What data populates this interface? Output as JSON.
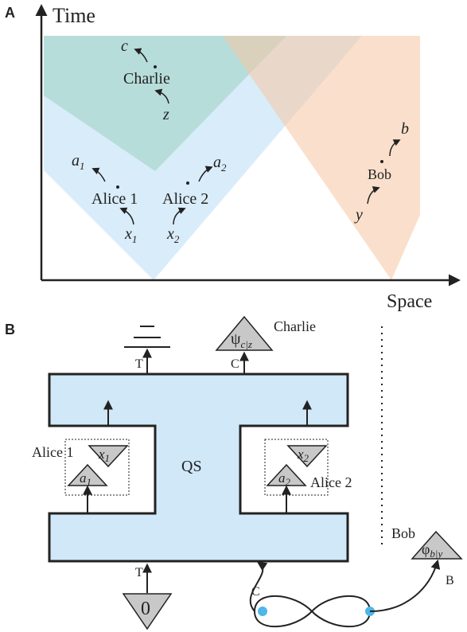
{
  "panel_a": {
    "label": "A",
    "y_axis": "Time",
    "x_axis": "Space",
    "charlie": {
      "name": "Charlie",
      "input": "z",
      "output": "c"
    },
    "alice_1": {
      "name": "Alice 1",
      "input": {
        "base": "x",
        "sub": "1"
      },
      "output": {
        "base": "a",
        "sub": "1"
      }
    },
    "alice_2": {
      "name": "Alice 2",
      "input": {
        "base": "x",
        "sub": "2"
      },
      "output": {
        "base": "a",
        "sub": "2"
      }
    },
    "bob": {
      "name": "Bob",
      "input": "y",
      "output": "b"
    }
  },
  "panel_b": {
    "label": "B",
    "top_ports": [
      "T",
      "C"
    ],
    "charlie": {
      "name": "Charlie",
      "state": {
        "base": "ψ",
        "sub": "c|z"
      }
    },
    "alice_1": {
      "name": "Alice 1",
      "input": {
        "base": "x",
        "sub": "1"
      },
      "output": {
        "base": "a",
        "sub": "1"
      }
    },
    "alice_2": {
      "name": "Alice 2",
      "input": {
        "base": "x",
        "sub": "2"
      },
      "output": {
        "base": "a",
        "sub": "2"
      }
    },
    "system": "QS",
    "bob": {
      "name": "Bob",
      "state": {
        "base": "φ",
        "sub": "b|y"
      },
      "port": "B"
    },
    "bottom_ports": [
      "T",
      "C"
    ],
    "initial_state": "0"
  }
}
